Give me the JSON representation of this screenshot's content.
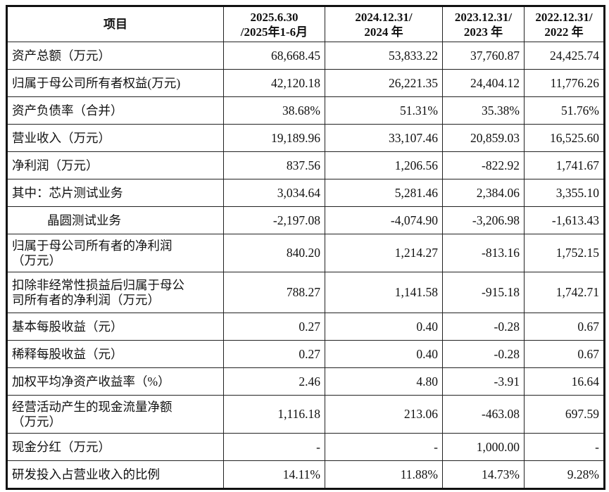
{
  "headers": [
    "项目",
    "2025.6.30\n/2025年1-6月",
    "2024.12.31/\n2024 年",
    "2023.12.31/\n2023 年",
    "2022.12.31/\n2022 年"
  ],
  "rows": [
    {
      "label": "资产总额（万元）",
      "values": [
        "68,668.45",
        "53,833.22",
        "37,760.87",
        "24,425.74"
      ]
    },
    {
      "label": "归属于母公司所有者权益(万元)",
      "values": [
        "42,120.18",
        "26,221.35",
        "24,404.12",
        "11,776.26"
      ]
    },
    {
      "label": "资产负债率（合并）",
      "values": [
        "38.68%",
        "51.31%",
        "35.38%",
        "51.76%"
      ]
    },
    {
      "label": "营业收入（万元）",
      "values": [
        "19,189.96",
        "33,107.46",
        "20,859.03",
        "16,525.60"
      ]
    },
    {
      "label": "净利润（万元）",
      "values": [
        "837.56",
        "1,206.56",
        "-822.92",
        "1,741.67"
      ]
    },
    {
      "label": "其中：芯片测试业务",
      "values": [
        "3,034.64",
        "5,281.46",
        "2,384.06",
        "3,355.10"
      ]
    },
    {
      "label": "晶圆测试业务",
      "values": [
        "-2,197.08",
        "-4,074.90",
        "-3,206.98",
        "-1,613.43"
      ]
    },
    {
      "label": "归属于母公司所有者的净利润\n（万元）",
      "values": [
        "840.20",
        "1,214.27",
        "-813.16",
        "1,752.15"
      ]
    },
    {
      "label": "扣除非经常性损益后归属于母公\n司所有者的净利润（万元）",
      "values": [
        "788.27",
        "1,141.58",
        "-915.18",
        "1,742.71"
      ]
    },
    {
      "label": "基本每股收益（元）",
      "values": [
        "0.27",
        "0.40",
        "-0.28",
        "0.67"
      ]
    },
    {
      "label": "稀释每股收益（元）",
      "values": [
        "0.27",
        "0.40",
        "-0.28",
        "0.67"
      ]
    },
    {
      "label": "加权平均净资产收益率（%）",
      "values": [
        "2.46",
        "4.80",
        "-3.91",
        "16.64"
      ]
    },
    {
      "label": "经营活动产生的现金流量净额\n（万元）",
      "values": [
        "1,116.18",
        "213.06",
        "-463.08",
        "697.59"
      ]
    },
    {
      "label": "现金分红（万元）",
      "values": [
        "-",
        "-",
        "1,000.00",
        "-"
      ]
    },
    {
      "label": "研发投入占营业收入的比例",
      "values": [
        "14.11%",
        "11.88%",
        "14.73%",
        "9.28%"
      ]
    }
  ]
}
